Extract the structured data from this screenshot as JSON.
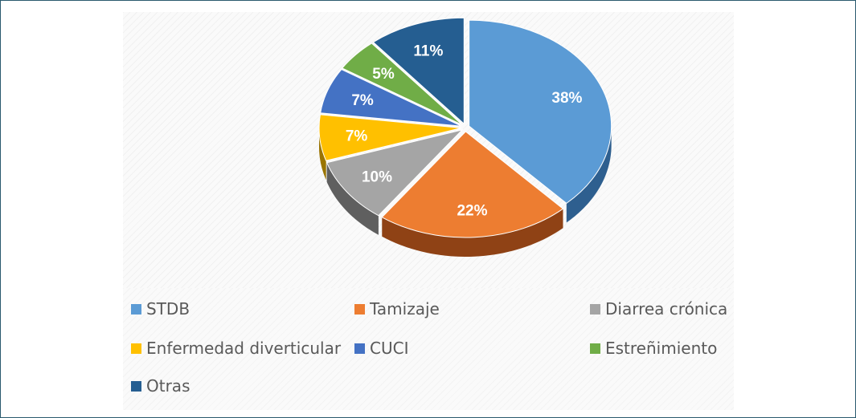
{
  "chart_data": {
    "type": "pie",
    "style": "3d-exploded-wedges",
    "title": "",
    "legend_position": "bottom",
    "slices": [
      {
        "label": "STDB",
        "value": 38,
        "display": "38%",
        "color": "#5b9bd5",
        "side_color": "#2e5f8f"
      },
      {
        "label": "Tamizaje",
        "value": 22,
        "display": "22%",
        "color": "#ed7d31",
        "side_color": "#8f4215"
      },
      {
        "label": "Diarrea crónica",
        "value": 10,
        "display": "10%",
        "color": "#a5a5a5",
        "side_color": "#5f5f5f"
      },
      {
        "label": "Enfermedad diverticular",
        "value": 7,
        "display": "7%",
        "color": "#ffc000",
        "side_color": "#9a7400"
      },
      {
        "label": "CUCI",
        "value": 7,
        "display": "7%",
        "color": "#4472c4",
        "side_color": "#223f73"
      },
      {
        "label": "Estreñimiento",
        "value": 5,
        "display": "5%",
        "color": "#70ad47",
        "side_color": "#3f6a24"
      },
      {
        "label": "Otras",
        "value": 11,
        "display": "11%",
        "color": "#255e91",
        "side_color": "#123552"
      }
    ]
  }
}
